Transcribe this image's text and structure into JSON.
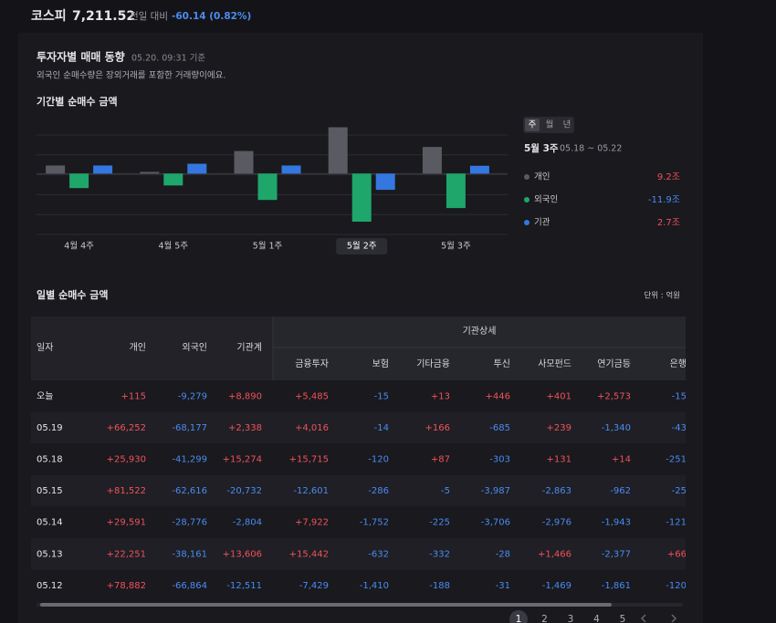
{
  "header": {
    "index_name": "코스피",
    "index_value": "7,211.52",
    "change_label": "전일 대비",
    "change": "-60.14 (0.82%)"
  },
  "section": {
    "title": "투자자별 매매 동향",
    "timestamp": "05.20. 09:31 기준",
    "note": "외국인 순매수량은 장외거래를 포함한 거래량이에요."
  },
  "chart_data": {
    "type": "bar",
    "title": "기간별 순매수 금액",
    "categories": [
      "4월 4주",
      "4월 5주",
      "5월 1주",
      "5월 2주",
      "5월 3주"
    ],
    "series": [
      {
        "name": "개인",
        "color": "#5a5a62",
        "values": [
          2.8,
          0.6,
          7.8,
          16.0,
          9.2
        ],
        "value_labels": [
          null,
          null,
          null,
          null,
          "9.2조"
        ]
      },
      {
        "name": "외국인",
        "color": "#1fa66a",
        "values": [
          -5.0,
          -4.1,
          -9.1,
          -16.6,
          -11.9
        ],
        "value_labels": [
          null,
          null,
          null,
          null,
          "-11.9조"
        ]
      },
      {
        "name": "기관",
        "color": "#3477e0",
        "values": [
          2.8,
          3.4,
          2.8,
          -5.6,
          2.7
        ],
        "value_labels": [
          null,
          null,
          null,
          null,
          "2.7조"
        ]
      }
    ],
    "ylim": [
      -21,
      19
    ],
    "highlight_category": 3,
    "period_tabs": [
      "주",
      "월",
      "년"
    ],
    "active_tab": 0,
    "selected_period": "5월 3주",
    "selected_range": "05.18 ~ 05.22"
  },
  "table": {
    "title": "일별 순매수 금액",
    "unit": "단위 : 억원",
    "group_header": "기관상세",
    "columns": [
      "일자",
      "개인",
      "외국인",
      "기관계",
      "금융투자",
      "보험",
      "기타금융",
      "투신",
      "사모펀드",
      "연기금등",
      "은행"
    ],
    "rows": [
      [
        "오늘",
        "+115",
        "-9,279",
        "+8,890",
        "+5,485",
        "-15",
        "+13",
        "+446",
        "+401",
        "+2,573",
        "-15"
      ],
      [
        "05.19",
        "+66,252",
        "-68,177",
        "+2,338",
        "+4,016",
        "-14",
        "+166",
        "-685",
        "+239",
        "-1,340",
        "-43"
      ],
      [
        "05.18",
        "+25,930",
        "-41,299",
        "+15,274",
        "+15,715",
        "-120",
        "+87",
        "-303",
        "+131",
        "+14",
        "-251"
      ],
      [
        "05.15",
        "+81,522",
        "-62,616",
        "-20,732",
        "-12,601",
        "-286",
        "-5",
        "-3,987",
        "-2,863",
        "-962",
        "-25"
      ],
      [
        "05.14",
        "+29,591",
        "-28,776",
        "-2,804",
        "+7,922",
        "-1,752",
        "-225",
        "-3,706",
        "-2,976",
        "-1,943",
        "-121"
      ],
      [
        "05.13",
        "+22,251",
        "-38,161",
        "+13,606",
        "+15,442",
        "-632",
        "-332",
        "-28",
        "+1,466",
        "-2,377",
        "+66"
      ],
      [
        "05.12",
        "+78,882",
        "-66,864",
        "-12,511",
        "-7,429",
        "-1,410",
        "-188",
        "-31",
        "-1,469",
        "-1,861",
        "-120"
      ]
    ]
  },
  "pagination": {
    "pages": [
      "1",
      "2",
      "3",
      "4",
      "5"
    ],
    "current": 0
  }
}
